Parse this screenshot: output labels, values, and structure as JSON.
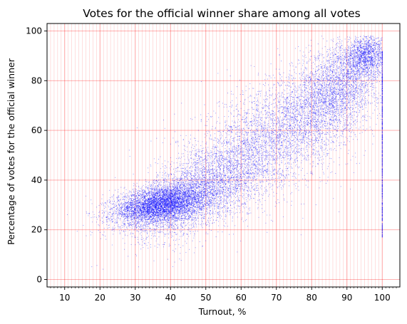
{
  "chart_data": {
    "type": "scatter",
    "title": "Votes for the official winner share among all votes",
    "xlabel": "Turnout, %",
    "ylabel": "Percentage of votes for the official winner",
    "xlim": [
      5,
      105
    ],
    "ylim": [
      -3,
      103
    ],
    "x_ticks": [
      10,
      20,
      30,
      40,
      50,
      60,
      70,
      80,
      90,
      100
    ],
    "y_ticks": [
      0,
      20,
      40,
      60,
      80,
      100
    ],
    "grid": true,
    "colors": {
      "points": "#0000ff",
      "grid": "#ff0000",
      "axes": "#000000"
    },
    "series": [
      {
        "clusters": [
          {
            "x": 37,
            "y": 30,
            "sx": 6.5,
            "sy": 4,
            "rho": 0.35,
            "n": 5200
          },
          {
            "x": 50,
            "y": 37,
            "sx": 10,
            "sy": 10,
            "rho": 0.6,
            "n": 3800
          },
          {
            "x": 72,
            "y": 60,
            "sx": 12,
            "sy": 13,
            "rho": 0.5,
            "n": 3600
          },
          {
            "x": 88,
            "y": 78,
            "sx": 7,
            "sy": 10,
            "rho": 0.5,
            "n": 2800
          },
          {
            "x": 95,
            "y": 90,
            "sx": 3,
            "sy": 4,
            "rho": 0.2,
            "n": 1200
          }
        ],
        "wall": {
          "x": 100,
          "y_min": 17,
          "y_max": 92,
          "n": 700
        }
      }
    ]
  }
}
